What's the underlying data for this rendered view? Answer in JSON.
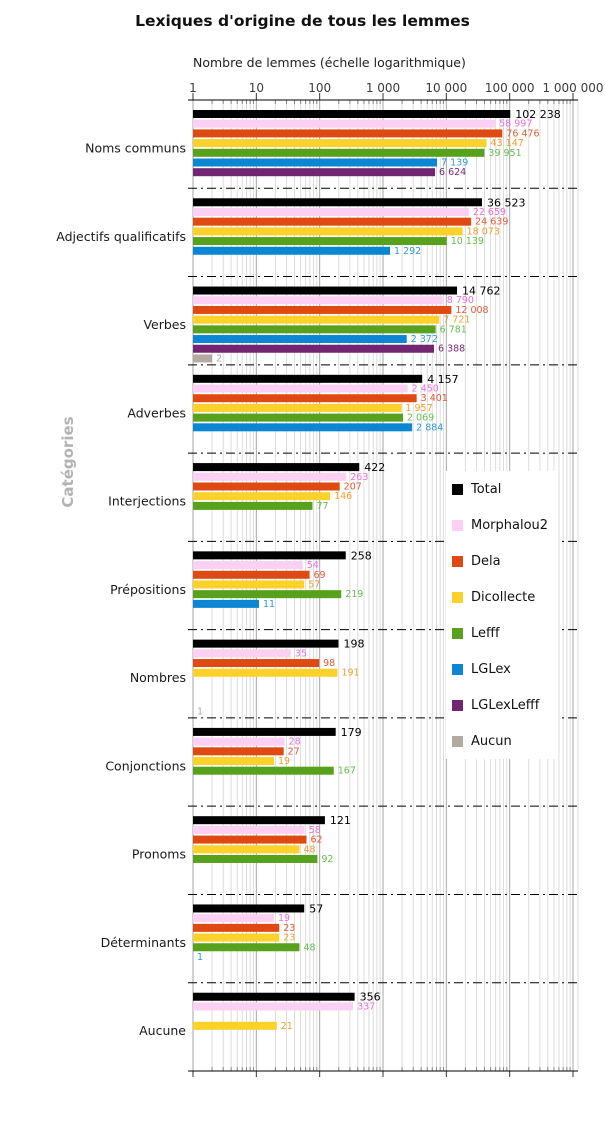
{
  "chart_data": {
    "type": "bar",
    "orientation": "horizontal",
    "x_scale": "log10",
    "x_range": [
      1,
      1000000
    ],
    "grid": true,
    "legend_position": "overlay-right-middle",
    "title": "Lexiques d'origine de tous les lemmes",
    "xlabel": "Nombre de lemmes (échelle logarithmique)",
    "ylabel": "Catégories",
    "x_tick_labels": [
      "1",
      "10",
      "100",
      "1 000",
      "10 000",
      "100 000",
      "1 000 000"
    ],
    "categories": [
      "Noms communs",
      "Adjectifs qualificatifs",
      "Verbes",
      "Adverbes",
      "Interjections",
      "Prépositions",
      "Nombres",
      "Conjonctions",
      "Pronoms",
      "Déterminants",
      "Aucune"
    ],
    "series": [
      {
        "name": "Total",
        "color": "#000000",
        "label_color": "#000000",
        "values": [
          102238,
          36523,
          14762,
          4157,
          422,
          258,
          198,
          179,
          121,
          57,
          356
        ]
      },
      {
        "name": "Morphalou2",
        "color": "#fbd0f2",
        "label_color": "#ee6fd8",
        "values": [
          58997,
          22659,
          8790,
          2450,
          263,
          54,
          35,
          28,
          58,
          19,
          337
        ]
      },
      {
        "name": "Dela",
        "color": "#de4a12",
        "label_color": "#e25b36",
        "values": [
          76476,
          24639,
          12008,
          3401,
          207,
          69,
          98,
          27,
          62,
          23,
          null
        ]
      },
      {
        "name": "Dicollecte",
        "color": "#fcd12a",
        "label_color": "#f0a032",
        "values": [
          43147,
          18073,
          7721,
          1957,
          146,
          57,
          191,
          19,
          48,
          23,
          21
        ]
      },
      {
        "name": "Lefff",
        "color": "#58a11c",
        "label_color": "#66bf4f",
        "values": [
          39951,
          10139,
          6781,
          2069,
          77,
          219,
          null,
          167,
          92,
          48,
          null
        ]
      },
      {
        "name": "LGLex",
        "color": "#0b86d3",
        "label_color": "#2f9bdd",
        "values": [
          7139,
          1292,
          2372,
          2884,
          null,
          11,
          null,
          null,
          null,
          1,
          null
        ]
      },
      {
        "name": "LGLexLefff",
        "color": "#722571",
        "label_color": "#7a2a78",
        "values": [
          6624,
          null,
          6388,
          null,
          null,
          null,
          null,
          null,
          null,
          null,
          null
        ]
      },
      {
        "name": "Aucun",
        "color": "#b3aaa1",
        "label_color": "#b3aaa1",
        "values": [
          null,
          null,
          2,
          null,
          null,
          null,
          1,
          null,
          null,
          null,
          null
        ]
      }
    ]
  }
}
